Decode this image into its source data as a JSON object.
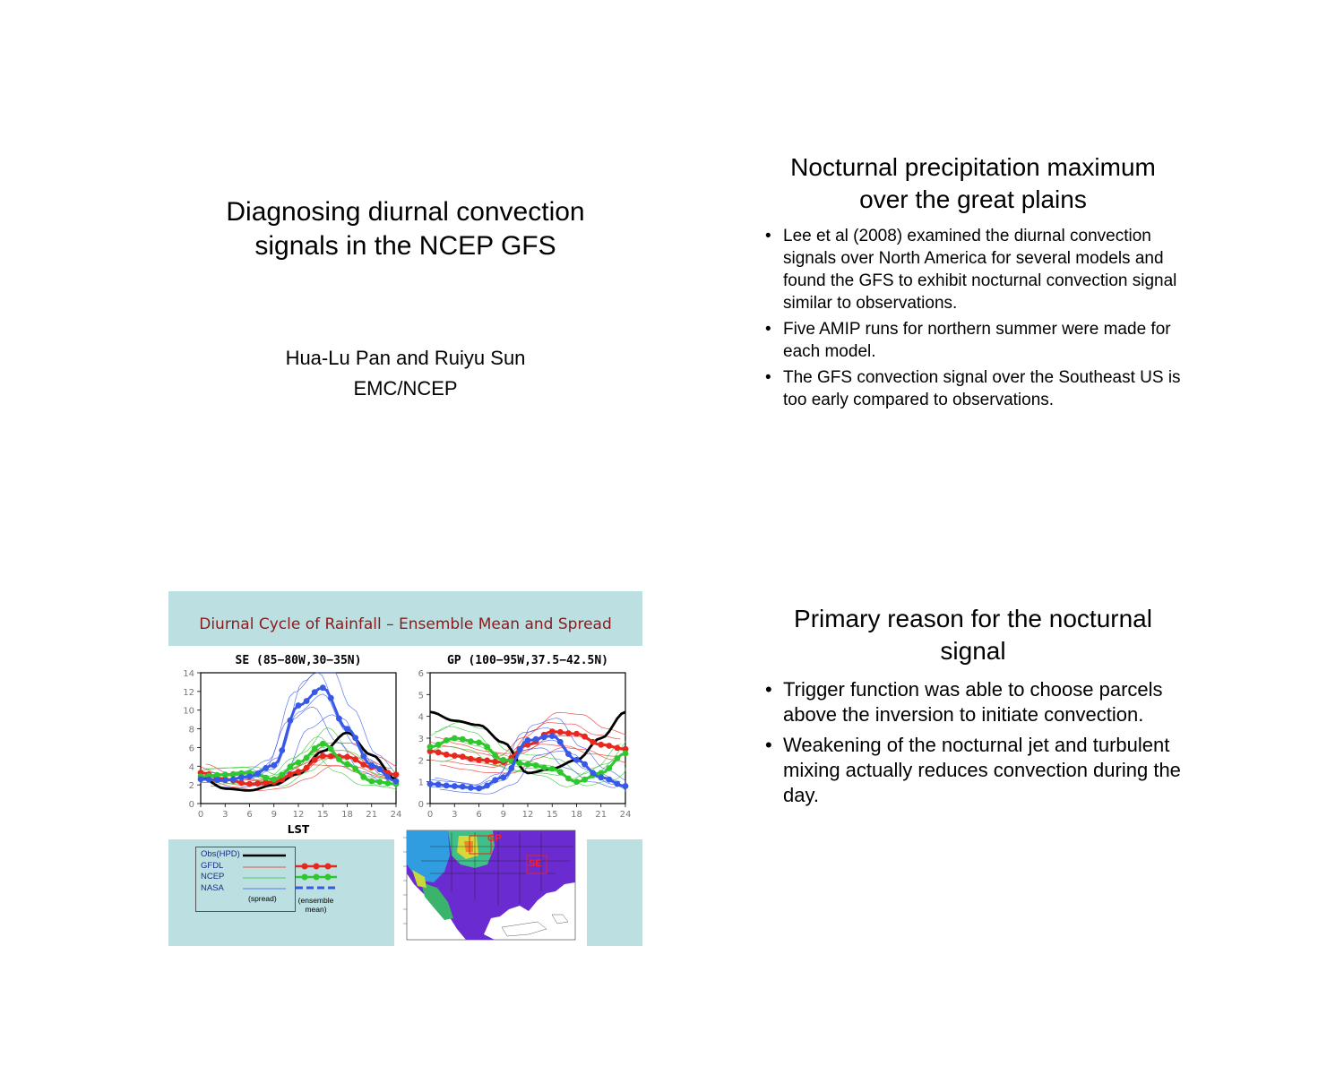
{
  "slide1": {
    "title_lines": [
      "Diagnosing diurnal convection",
      "signals in the NCEP GFS"
    ],
    "authors": "Hua-Lu Pan and Ruiyu Sun",
    "affiliation": "EMC/NCEP"
  },
  "slide2": {
    "title_lines": [
      "Nocturnal precipitation maximum",
      "over the great plains"
    ],
    "bullets": [
      "Lee et al (2008) examined the diurnal convection signals over North America for several models and found the GFS to exhibit nocturnal convection signal similar to observations.",
      "Five AMIP runs for northern summer were made for each model.",
      "The GFS convection signal over the Southeast US is too early compared to observations."
    ]
  },
  "slide3": {
    "banner": "Diurnal Cycle of Rainfall – Ensemble Mean and Spread",
    "xlabel": "LST",
    "legend": {
      "entries": [
        "Obs(HPD)",
        "GFDL",
        "NCEP",
        "NASA"
      ],
      "spread_label": "(spread)",
      "mean_label_lines": [
        "(ensemble",
        "mean)"
      ]
    },
    "map_labels": [
      "GP",
      "SE"
    ],
    "colors": {
      "obs": "#000000",
      "gfdl": "#e8281f",
      "ncep": "#2ec82e",
      "nasa": "#3858e8",
      "banner_bg": "#bce0e1",
      "banner_text": "#8b1a1a"
    }
  },
  "slide4": {
    "title_lines": [
      "Primary reason for the nocturnal",
      "signal"
    ],
    "bullets": [
      "Trigger function was able to choose parcels above the inversion to initiate convection.",
      "Weakening of the nocturnal jet and turbulent mixing actually reduces convection during the day."
    ]
  },
  "chart_data": [
    {
      "type": "line",
      "title": "SE (85−80W,30−35N)",
      "xlabel": "LST",
      "ylabel": "",
      "x": [
        0,
        3,
        6,
        9,
        12,
        15,
        18,
        21,
        24
      ],
      "xlim": [
        0,
        24
      ],
      "ylim": [
        0,
        14
      ],
      "yticks": [
        0,
        2,
        4,
        6,
        8,
        10,
        12,
        14
      ],
      "series": [
        {
          "name": "Obs(HPD)",
          "color": "#000000",
          "values": [
            2.8,
            1.6,
            1.4,
            2.0,
            3.2,
            5.6,
            7.6,
            5.2,
            2.6
          ]
        },
        {
          "name": "GFDL",
          "color": "#e8281f",
          "values": [
            3.3,
            2.6,
            2.1,
            2.3,
            3.4,
            5.1,
            5.0,
            3.9,
            3.1
          ]
        },
        {
          "name": "NCEP",
          "color": "#2ec82e",
          "values": [
            2.9,
            3.1,
            3.3,
            2.6,
            4.4,
            6.4,
            4.2,
            2.4,
            2.1
          ]
        },
        {
          "name": "NASA",
          "color": "#3858e8",
          "values": [
            2.6,
            2.5,
            2.9,
            4.1,
            10.5,
            12.4,
            8.0,
            4.1,
            2.4
          ]
        }
      ]
    },
    {
      "type": "line",
      "title": "GP (100−95W,37.5−42.5N)",
      "xlabel": "",
      "ylabel": "",
      "x": [
        0,
        3,
        6,
        9,
        12,
        15,
        18,
        21,
        24
      ],
      "xlim": [
        0,
        24
      ],
      "ylim": [
        0,
        6
      ],
      "yticks": [
        0,
        1,
        2,
        3,
        4,
        5,
        6
      ],
      "series": [
        {
          "name": "Obs(HPD)",
          "color": "#000000",
          "values": [
            4.2,
            3.8,
            3.6,
            2.8,
            1.4,
            1.6,
            2.0,
            3.0,
            4.2
          ]
        },
        {
          "name": "GFDL",
          "color": "#e8281f",
          "values": [
            2.4,
            2.2,
            2.0,
            1.9,
            2.7,
            3.3,
            3.2,
            2.7,
            2.5
          ]
        },
        {
          "name": "NCEP",
          "color": "#2ec82e",
          "values": [
            2.6,
            3.0,
            2.8,
            2.0,
            1.8,
            1.6,
            1.0,
            1.4,
            2.3
          ]
        },
        {
          "name": "NASA",
          "color": "#3858e8",
          "values": [
            0.9,
            0.8,
            0.7,
            1.2,
            2.9,
            3.1,
            2.0,
            1.2,
            0.8
          ]
        }
      ]
    }
  ]
}
